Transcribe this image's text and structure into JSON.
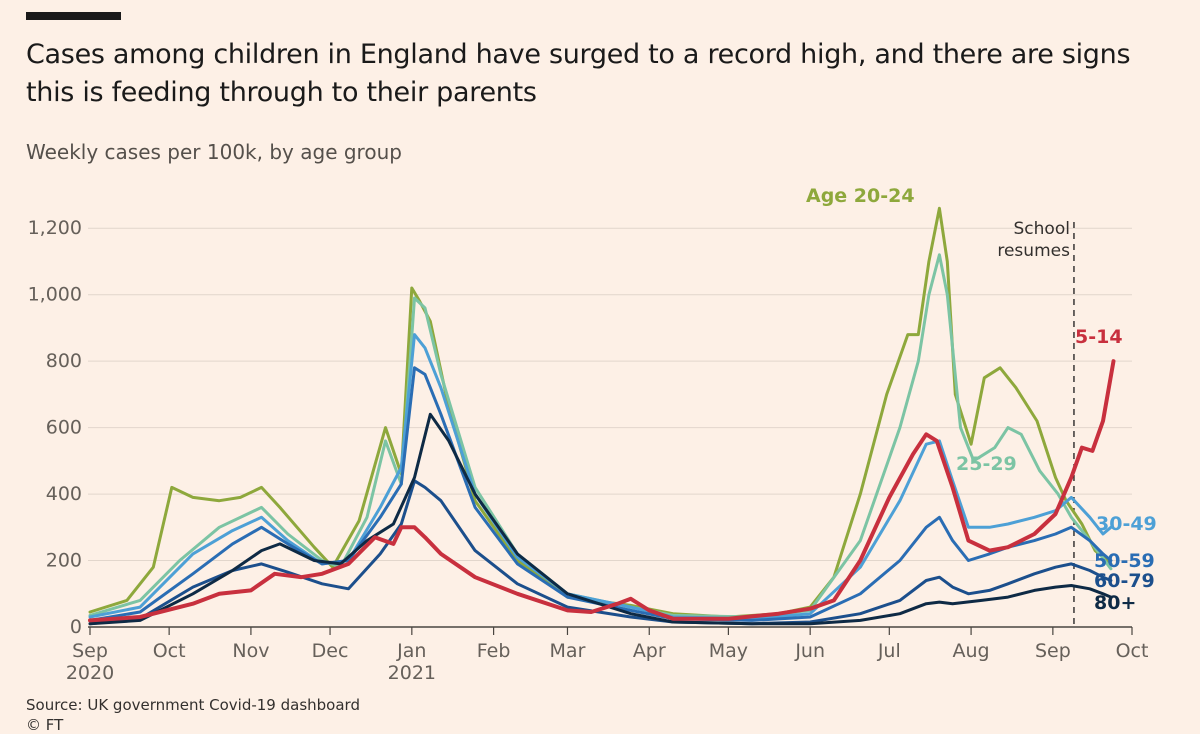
{
  "title": "Cases among children in England have surged to a record high, and there are signs this is feeding through to their parents",
  "subtitle": "Weekly cases per 100k, by age group",
  "source": "Source: UK government Covid-19 dashboard",
  "credit": "© FT",
  "chart_data": {
    "type": "line",
    "ylim": [
      0,
      1300
    ],
    "yticks": [
      0,
      200,
      400,
      600,
      800,
      1000,
      1200
    ],
    "ytick_labels": [
      "0",
      "200",
      "400",
      "600",
      "800",
      "1,000",
      "1,200"
    ],
    "grid": true,
    "x_start": "2020-09-01",
    "x_end": "2021-10-01",
    "xticks": [
      {
        "date": "2020-09-01",
        "label": "Sep",
        "sub": "2020"
      },
      {
        "date": "2020-10-01",
        "label": "Oct"
      },
      {
        "date": "2020-11-01",
        "label": "Nov"
      },
      {
        "date": "2020-12-01",
        "label": "Dec"
      },
      {
        "date": "2021-01-01",
        "label": "Jan",
        "sub": "2021"
      },
      {
        "date": "2021-02-01",
        "label": "Feb"
      },
      {
        "date": "2021-03-01",
        "label": "Mar"
      },
      {
        "date": "2021-04-01",
        "label": "Apr"
      },
      {
        "date": "2021-05-01",
        "label": "May"
      },
      {
        "date": "2021-06-01",
        "label": "Jun"
      },
      {
        "date": "2021-07-01",
        "label": "Jul"
      },
      {
        "date": "2021-08-01",
        "label": "Aug"
      },
      {
        "date": "2021-09-01",
        "label": "Sep"
      },
      {
        "date": "2021-10-01",
        "label": "Oct"
      }
    ],
    "annotation": {
      "date": "2021-09-09",
      "lines": [
        "School",
        "resumes"
      ]
    },
    "series": [
      {
        "name": "Age 20-24",
        "color": "#8ea83c",
        "points": [
          [
            "2020-09-01",
            45
          ],
          [
            "2020-09-15",
            80
          ],
          [
            "2020-09-25",
            180
          ],
          [
            "2020-10-02",
            420
          ],
          [
            "2020-10-10",
            390
          ],
          [
            "2020-10-20",
            380
          ],
          [
            "2020-10-28",
            390
          ],
          [
            "2020-11-05",
            420
          ],
          [
            "2020-11-12",
            360
          ],
          [
            "2020-11-25",
            240
          ],
          [
            "2020-12-02",
            180
          ],
          [
            "2020-12-12",
            320
          ],
          [
            "2020-12-22",
            600
          ],
          [
            "2020-12-28",
            460
          ],
          [
            "2021-01-01",
            1020
          ],
          [
            "2021-01-04",
            980
          ],
          [
            "2021-01-08",
            920
          ],
          [
            "2021-01-15",
            660
          ],
          [
            "2021-01-25",
            380
          ],
          [
            "2021-02-10",
            200
          ],
          [
            "2021-03-01",
            90
          ],
          [
            "2021-03-25",
            65
          ],
          [
            "2021-04-10",
            40
          ],
          [
            "2021-05-01",
            30
          ],
          [
            "2021-05-20",
            40
          ],
          [
            "2021-06-01",
            60
          ],
          [
            "2021-06-10",
            150
          ],
          [
            "2021-06-20",
            400
          ],
          [
            "2021-06-30",
            700
          ],
          [
            "2021-07-08",
            880
          ],
          [
            "2021-07-12",
            880
          ],
          [
            "2021-07-16",
            1100
          ],
          [
            "2021-07-20",
            1260
          ],
          [
            "2021-07-23",
            1100
          ],
          [
            "2021-07-26",
            700
          ],
          [
            "2021-08-01",
            550
          ],
          [
            "2021-08-06",
            750
          ],
          [
            "2021-08-12",
            780
          ],
          [
            "2021-08-18",
            720
          ],
          [
            "2021-08-26",
            620
          ],
          [
            "2021-09-02",
            450
          ],
          [
            "2021-09-06",
            380
          ],
          [
            "2021-09-12",
            310
          ],
          [
            "2021-09-17",
            230
          ],
          [
            "2021-09-23",
            190
          ]
        ]
      },
      {
        "name": "25-29",
        "color": "#7cc4a4",
        "points": [
          [
            "2020-09-01",
            35
          ],
          [
            "2020-09-20",
            80
          ],
          [
            "2020-10-05",
            200
          ],
          [
            "2020-10-20",
            300
          ],
          [
            "2020-11-05",
            360
          ],
          [
            "2020-11-15",
            280
          ],
          [
            "2020-11-28",
            200
          ],
          [
            "2020-12-05",
            180
          ],
          [
            "2020-12-15",
            330
          ],
          [
            "2020-12-22",
            560
          ],
          [
            "2020-12-28",
            430
          ],
          [
            "2021-01-02",
            990
          ],
          [
            "2021-01-06",
            960
          ],
          [
            "2021-01-12",
            760
          ],
          [
            "2021-01-25",
            420
          ],
          [
            "2021-02-10",
            220
          ],
          [
            "2021-03-01",
            100
          ],
          [
            "2021-03-25",
            60
          ],
          [
            "2021-04-10",
            35
          ],
          [
            "2021-05-10",
            30
          ],
          [
            "2021-06-01",
            50
          ],
          [
            "2021-06-20",
            260
          ],
          [
            "2021-07-05",
            600
          ],
          [
            "2021-07-12",
            800
          ],
          [
            "2021-07-16",
            1000
          ],
          [
            "2021-07-20",
            1120
          ],
          [
            "2021-07-23",
            1000
          ],
          [
            "2021-07-28",
            600
          ],
          [
            "2021-08-02",
            500
          ],
          [
            "2021-08-10",
            540
          ],
          [
            "2021-08-15",
            600
          ],
          [
            "2021-08-20",
            580
          ],
          [
            "2021-08-27",
            470
          ],
          [
            "2021-09-03",
            400
          ],
          [
            "2021-09-08",
            330
          ],
          [
            "2021-09-15",
            260
          ],
          [
            "2021-09-23",
            175
          ]
        ]
      },
      {
        "name": "30-49",
        "color": "#4da0d6",
        "points": [
          [
            "2020-09-01",
            30
          ],
          [
            "2020-09-20",
            60
          ],
          [
            "2020-10-10",
            220
          ],
          [
            "2020-10-25",
            290
          ],
          [
            "2020-11-05",
            330
          ],
          [
            "2020-11-15",
            260
          ],
          [
            "2020-11-28",
            190
          ],
          [
            "2020-12-08",
            200
          ],
          [
            "2020-12-20",
            360
          ],
          [
            "2020-12-28",
            480
          ],
          [
            "2021-01-02",
            880
          ],
          [
            "2021-01-06",
            840
          ],
          [
            "2021-01-12",
            720
          ],
          [
            "2021-01-25",
            400
          ],
          [
            "2021-02-10",
            210
          ],
          [
            "2021-03-01",
            100
          ],
          [
            "2021-03-25",
            60
          ],
          [
            "2021-04-10",
            30
          ],
          [
            "2021-05-10",
            25
          ],
          [
            "2021-06-01",
            40
          ],
          [
            "2021-06-20",
            180
          ],
          [
            "2021-07-05",
            380
          ],
          [
            "2021-07-15",
            550
          ],
          [
            "2021-07-20",
            560
          ],
          [
            "2021-07-25",
            440
          ],
          [
            "2021-07-31",
            300
          ],
          [
            "2021-08-08",
            300
          ],
          [
            "2021-08-15",
            310
          ],
          [
            "2021-08-25",
            330
          ],
          [
            "2021-09-02",
            350
          ],
          [
            "2021-09-08",
            390
          ],
          [
            "2021-09-15",
            330
          ],
          [
            "2021-09-20",
            280
          ],
          [
            "2021-09-23",
            300
          ]
        ]
      },
      {
        "name": "50-59",
        "color": "#2a6db4",
        "points": [
          [
            "2020-09-01",
            20
          ],
          [
            "2020-09-20",
            45
          ],
          [
            "2020-10-10",
            160
          ],
          [
            "2020-10-25",
            250
          ],
          [
            "2020-11-05",
            300
          ],
          [
            "2020-11-15",
            250
          ],
          [
            "2020-11-28",
            190
          ],
          [
            "2020-12-08",
            200
          ],
          [
            "2020-12-20",
            330
          ],
          [
            "2020-12-28",
            430
          ],
          [
            "2021-01-02",
            780
          ],
          [
            "2021-01-06",
            760
          ],
          [
            "2021-01-12",
            640
          ],
          [
            "2021-01-25",
            360
          ],
          [
            "2021-02-10",
            190
          ],
          [
            "2021-03-01",
            90
          ],
          [
            "2021-03-25",
            50
          ],
          [
            "2021-04-10",
            25
          ],
          [
            "2021-05-10",
            20
          ],
          [
            "2021-06-01",
            30
          ],
          [
            "2021-06-20",
            100
          ],
          [
            "2021-07-05",
            200
          ],
          [
            "2021-07-15",
            300
          ],
          [
            "2021-07-20",
            330
          ],
          [
            "2021-07-25",
            260
          ],
          [
            "2021-07-31",
            200
          ],
          [
            "2021-08-08",
            220
          ],
          [
            "2021-08-15",
            240
          ],
          [
            "2021-08-25",
            260
          ],
          [
            "2021-09-02",
            280
          ],
          [
            "2021-09-08",
            300
          ],
          [
            "2021-09-15",
            260
          ],
          [
            "2021-09-20",
            220
          ],
          [
            "2021-09-23",
            200
          ]
        ]
      },
      {
        "name": "60-79",
        "color": "#1c4f8c",
        "points": [
          [
            "2020-09-01",
            10
          ],
          [
            "2020-09-20",
            25
          ],
          [
            "2020-10-10",
            120
          ],
          [
            "2020-10-25",
            170
          ],
          [
            "2020-11-05",
            190
          ],
          [
            "2020-11-15",
            165
          ],
          [
            "2020-11-28",
            130
          ],
          [
            "2020-12-08",
            115
          ],
          [
            "2020-12-20",
            220
          ],
          [
            "2020-12-28",
            310
          ],
          [
            "2021-01-02",
            440
          ],
          [
            "2021-01-06",
            420
          ],
          [
            "2021-01-12",
            380
          ],
          [
            "2021-01-25",
            230
          ],
          [
            "2021-02-10",
            130
          ],
          [
            "2021-03-01",
            60
          ],
          [
            "2021-03-25",
            30
          ],
          [
            "2021-04-10",
            15
          ],
          [
            "2021-05-10",
            10
          ],
          [
            "2021-06-01",
            15
          ],
          [
            "2021-06-20",
            40
          ],
          [
            "2021-07-05",
            80
          ],
          [
            "2021-07-15",
            140
          ],
          [
            "2021-07-20",
            150
          ],
          [
            "2021-07-25",
            120
          ],
          [
            "2021-07-31",
            100
          ],
          [
            "2021-08-08",
            110
          ],
          [
            "2021-08-15",
            130
          ],
          [
            "2021-08-25",
            160
          ],
          [
            "2021-09-02",
            180
          ],
          [
            "2021-09-08",
            190
          ],
          [
            "2021-09-15",
            170
          ],
          [
            "2021-09-20",
            150
          ],
          [
            "2021-09-23",
            140
          ]
        ]
      },
      {
        "name": "80+",
        "color": "#0e2a45",
        "points": [
          [
            "2020-09-01",
            10
          ],
          [
            "2020-09-20",
            20
          ],
          [
            "2020-10-10",
            100
          ],
          [
            "2020-10-25",
            170
          ],
          [
            "2020-11-05",
            230
          ],
          [
            "2020-11-12",
            250
          ],
          [
            "2020-11-25",
            200
          ],
          [
            "2020-12-05",
            190
          ],
          [
            "2020-12-15",
            260
          ],
          [
            "2020-12-25",
            310
          ],
          [
            "2021-01-02",
            450
          ],
          [
            "2021-01-08",
            640
          ],
          [
            "2021-01-15",
            560
          ],
          [
            "2021-01-25",
            400
          ],
          [
            "2021-02-10",
            220
          ],
          [
            "2021-03-01",
            100
          ],
          [
            "2021-03-25",
            40
          ],
          [
            "2021-04-10",
            15
          ],
          [
            "2021-05-10",
            10
          ],
          [
            "2021-06-01",
            10
          ],
          [
            "2021-06-20",
            20
          ],
          [
            "2021-07-05",
            40
          ],
          [
            "2021-07-15",
            70
          ],
          [
            "2021-07-20",
            75
          ],
          [
            "2021-07-25",
            70
          ],
          [
            "2021-08-05",
            80
          ],
          [
            "2021-08-15",
            90
          ],
          [
            "2021-08-25",
            110
          ],
          [
            "2021-09-02",
            120
          ],
          [
            "2021-09-08",
            125
          ],
          [
            "2021-09-15",
            115
          ],
          [
            "2021-09-20",
            100
          ],
          [
            "2021-09-23",
            90
          ]
        ]
      },
      {
        "name": "5-14",
        "color": "#c8303e",
        "points": [
          [
            "2020-09-01",
            20
          ],
          [
            "2020-09-20",
            30
          ],
          [
            "2020-10-10",
            70
          ],
          [
            "2020-10-20",
            100
          ],
          [
            "2020-11-01",
            110
          ],
          [
            "2020-11-10",
            160
          ],
          [
            "2020-11-20",
            150
          ],
          [
            "2020-11-28",
            160
          ],
          [
            "2020-12-08",
            190
          ],
          [
            "2020-12-18",
            270
          ],
          [
            "2020-12-25",
            250
          ],
          [
            "2020-12-28",
            300
          ],
          [
            "2021-01-02",
            300
          ],
          [
            "2021-01-06",
            270
          ],
          [
            "2021-01-12",
            220
          ],
          [
            "2021-01-25",
            150
          ],
          [
            "2021-02-10",
            100
          ],
          [
            "2021-03-01",
            50
          ],
          [
            "2021-03-10",
            45
          ],
          [
            "2021-03-20",
            70
          ],
          [
            "2021-03-25",
            85
          ],
          [
            "2021-04-01",
            50
          ],
          [
            "2021-04-10",
            25
          ],
          [
            "2021-05-01",
            25
          ],
          [
            "2021-05-20",
            40
          ],
          [
            "2021-06-01",
            55
          ],
          [
            "2021-06-10",
            80
          ],
          [
            "2021-06-20",
            200
          ],
          [
            "2021-07-01",
            390
          ],
          [
            "2021-07-10",
            520
          ],
          [
            "2021-07-15",
            580
          ],
          [
            "2021-07-19",
            560
          ],
          [
            "2021-07-25",
            420
          ],
          [
            "2021-07-31",
            260
          ],
          [
            "2021-08-08",
            230
          ],
          [
            "2021-08-15",
            240
          ],
          [
            "2021-08-25",
            280
          ],
          [
            "2021-09-02",
            340
          ],
          [
            "2021-09-08",
            450
          ],
          [
            "2021-09-12",
            540
          ],
          [
            "2021-09-16",
            530
          ],
          [
            "2021-09-20",
            620
          ],
          [
            "2021-09-24",
            800
          ]
        ]
      }
    ]
  }
}
